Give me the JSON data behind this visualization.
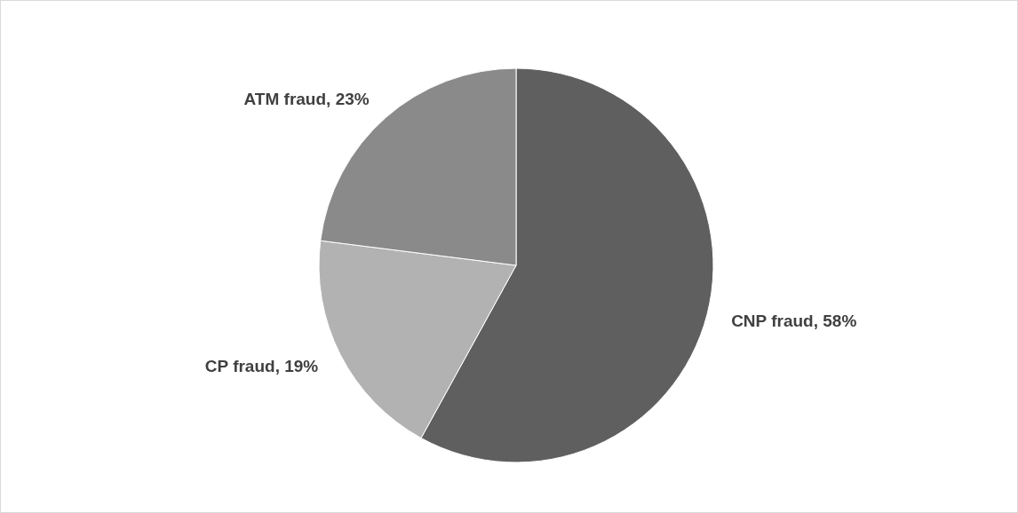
{
  "chart_data": {
    "type": "pie",
    "categories": [
      "CNP fraud",
      "CP fraud",
      "ATM fraud"
    ],
    "values": [
      58,
      19,
      23
    ],
    "colors": [
      "#5f5f5f",
      "#b2b2b2",
      "#8a8a8a"
    ],
    "value_labels": [
      "58%",
      "19%",
      "23%"
    ],
    "legend": false
  }
}
